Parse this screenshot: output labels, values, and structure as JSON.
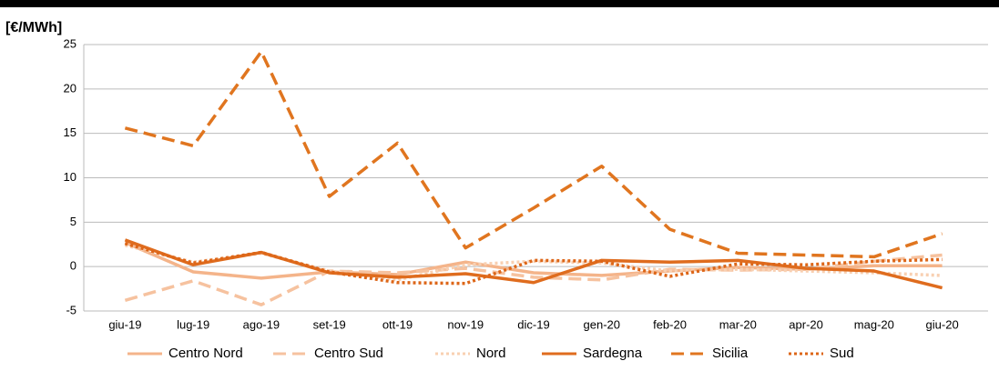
{
  "chart_data": {
    "type": "line",
    "title": "[€/MWh]",
    "categories": [
      "giu-19",
      "lug-19",
      "ago-19",
      "set-19",
      "ott-19",
      "nov-19",
      "dic-19",
      "gen-20",
      "feb-20",
      "mar-20",
      "apr-20",
      "mag-20",
      "giu-20"
    ],
    "series": [
      {
        "name": "Centro Nord",
        "color": "#f4b48a",
        "dash": "solid",
        "values": [
          2.7,
          -0.6,
          -1.3,
          -0.6,
          -0.9,
          0.5,
          -0.7,
          -1.0,
          -0.5,
          -0.1,
          -0.3,
          0.1,
          0.1
        ]
      },
      {
        "name": "Centro Sud",
        "color": "#f6c29f",
        "dash": "dashed",
        "values": [
          -3.8,
          -1.6,
          -4.3,
          -0.5,
          -0.7,
          -0.2,
          -1.2,
          -1.5,
          -0.3,
          -0.4,
          -0.3,
          0.6,
          1.3
        ]
      },
      {
        "name": "Nord",
        "color": "#f8d0b2",
        "dash": "dotted",
        "values": [
          2.4,
          0.5,
          1.5,
          -0.5,
          -1.5,
          0.2,
          0.6,
          0.4,
          -0.5,
          -0.3,
          -0.5,
          -0.7,
          -1.0
        ]
      },
      {
        "name": "Sardegna",
        "color": "#df6c1e",
        "dash": "solid",
        "values": [
          3.0,
          0.2,
          1.6,
          -0.7,
          -1.2,
          -0.8,
          -1.8,
          0.7,
          0.5,
          0.7,
          -0.2,
          -0.5,
          -2.4
        ]
      },
      {
        "name": "Sicilia",
        "color": "#e0751f",
        "dash": "dashed",
        "values": [
          15.6,
          13.6,
          24.2,
          7.9,
          13.9,
          2.1,
          6.6,
          11.3,
          4.2,
          1.5,
          1.3,
          1.1,
          3.7
        ]
      },
      {
        "name": "Sud",
        "color": "#dd6618",
        "dash": "dotted",
        "values": [
          2.6,
          0.4,
          1.6,
          -0.6,
          -1.8,
          -1.9,
          0.7,
          0.6,
          -1.1,
          0.3,
          0.2,
          0.6,
          0.8
        ]
      }
    ],
    "ylim": [
      -5,
      25
    ],
    "yticks": [
      -5,
      0,
      5,
      10,
      15,
      20,
      25
    ],
    "grid": true,
    "legend": "bottom"
  }
}
